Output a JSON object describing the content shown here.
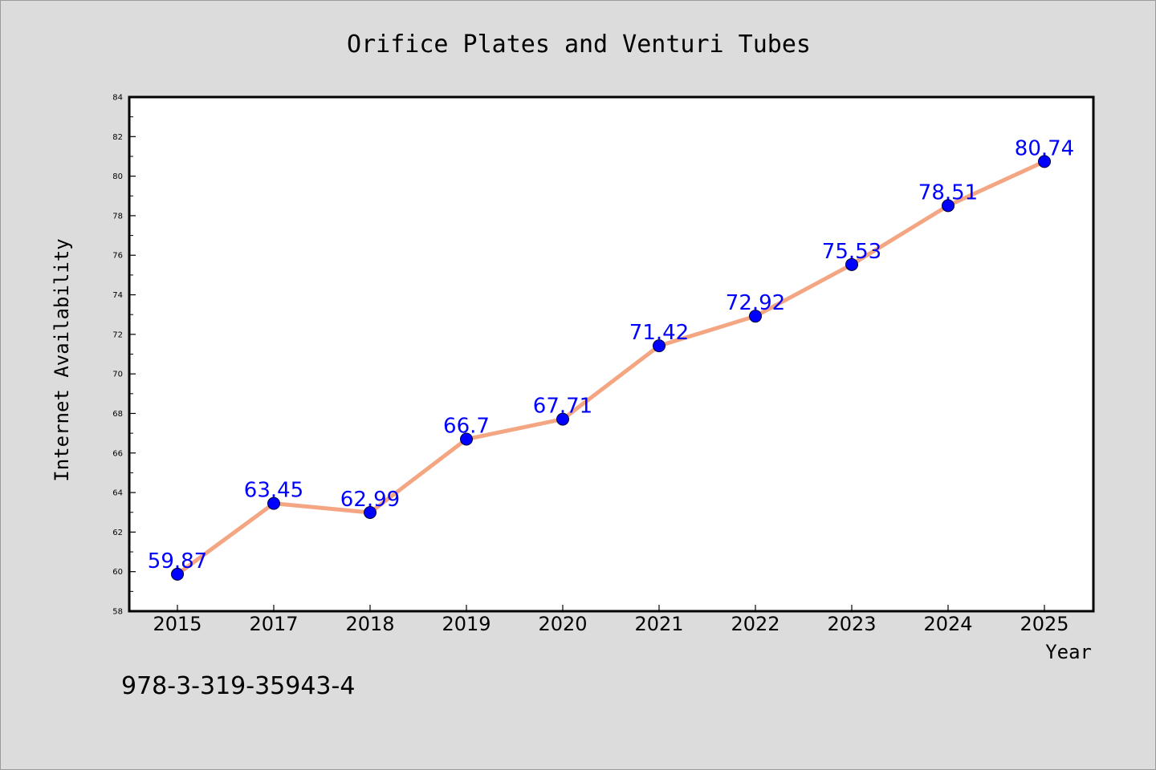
{
  "chart_data": {
    "type": "line",
    "title": "Orifice Plates and Venturi Tubes",
    "xlabel": "Year",
    "ylabel": "Internet Availability",
    "categories": [
      "2015",
      "2017",
      "2018",
      "2019",
      "2020",
      "2021",
      "2022",
      "2023",
      "2024",
      "2025"
    ],
    "values": [
      59.87,
      63.45,
      62.99,
      66.7,
      67.71,
      71.42,
      72.92,
      75.53,
      78.51,
      80.74
    ],
    "data_labels": [
      "59.87",
      "63.45",
      "62.99",
      "66.7",
      "67.71",
      "71.42",
      "72.92",
      "75.53",
      "78.51",
      "80.74"
    ],
    "ylim": [
      58,
      84
    ],
    "yticks": [
      58,
      60,
      62,
      64,
      66,
      68,
      70,
      72,
      74,
      76,
      78,
      80,
      82,
      84
    ],
    "ytick_labels": [
      "58",
      "60",
      "62",
      "64",
      "66",
      "68",
      "70",
      "72",
      "74",
      "76",
      "78",
      "80",
      "82",
      "84"
    ],
    "grid": false,
    "legend": "none",
    "colors": {
      "line": "#f4a582",
      "marker": "#0000ff",
      "data_label": "#0000ff",
      "figure_background": "#dcdcdc",
      "plot_background": "#ffffff"
    }
  },
  "footer": {
    "isbn": "978-3-319-35943-4"
  }
}
